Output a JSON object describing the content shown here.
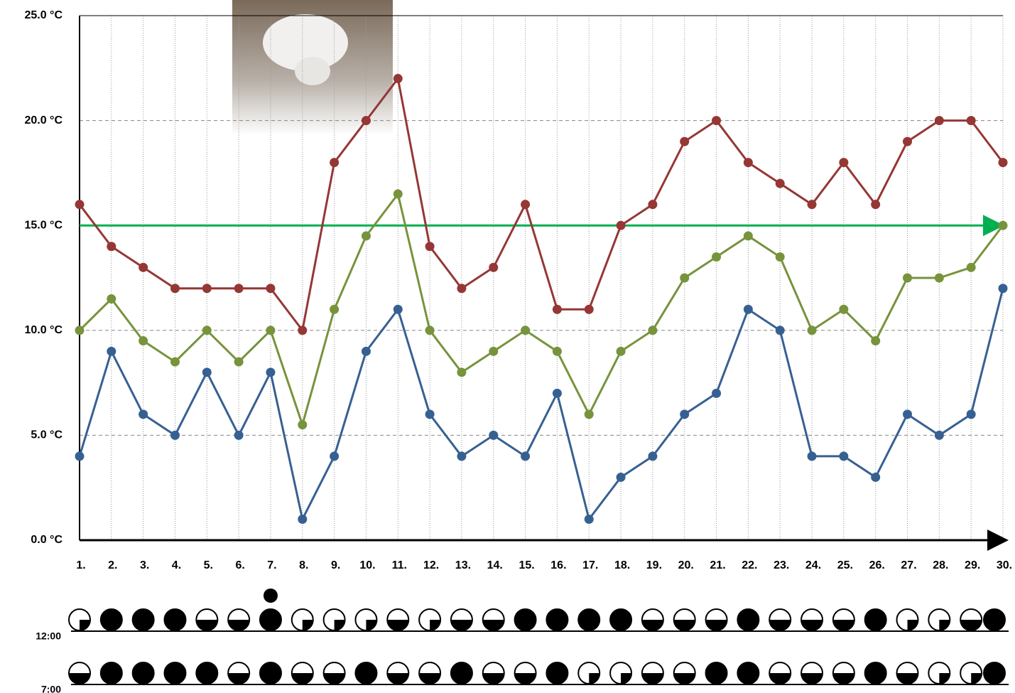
{
  "chart_data": {
    "type": "line",
    "categories": [
      "1.",
      "2.",
      "3.",
      "4.",
      "5.",
      "6.",
      "7.",
      "8.",
      "9.",
      "10.",
      "11.",
      "12.",
      "13.",
      "14.",
      "15.",
      "16.",
      "17.",
      "18.",
      "19.",
      "20.",
      "21.",
      "22.",
      "23.",
      "24.",
      "25.",
      "26.",
      "27.",
      "28.",
      "29.",
      "30."
    ],
    "series": [
      {
        "color": "#953735",
        "values": [
          16,
          14,
          13,
          12,
          12,
          12,
          12,
          10,
          18,
          20,
          22,
          14,
          12,
          13,
          16,
          11,
          11,
          15,
          16,
          19,
          20,
          18,
          17,
          16,
          18,
          16,
          19,
          20,
          20,
          18
        ]
      },
      {
        "color": "#77933c",
        "values": [
          10,
          11.5,
          9.5,
          8.5,
          10,
          8.5,
          10,
          5.5,
          11,
          14.5,
          16.5,
          10,
          8,
          9,
          10,
          9,
          6,
          9,
          10,
          12.5,
          13.5,
          14.5,
          13.5,
          10,
          11,
          9.5,
          12.5,
          12.5,
          13,
          15
        ]
      },
      {
        "color": "#376092",
        "values": [
          4,
          9,
          6,
          5,
          8,
          5,
          8,
          1,
          4,
          9,
          11,
          6,
          4,
          5,
          4,
          7,
          1,
          3,
          4,
          6,
          7,
          11,
          10,
          4,
          4,
          3,
          6,
          5,
          6,
          12
        ]
      }
    ],
    "reference": {
      "value": 15,
      "color": "#00b050"
    },
    "ylim": [
      0,
      25
    ],
    "yticks": [
      {
        "value": 0,
        "label": "0.0 °C"
      },
      {
        "value": 5,
        "label": "5.0 °C"
      },
      {
        "value": 10,
        "label": "10.0 °C"
      },
      {
        "value": 15,
        "label": "15.0 °C"
      },
      {
        "value": 20,
        "label": "20.0 °C"
      },
      {
        "value": 25,
        "label": "25.0 °C"
      }
    ],
    "grid": true,
    "cloud_cover": [
      {
        "name": "12:00",
        "values": [
          0.25,
          1,
          1,
          1,
          0.5,
          0.5,
          1,
          0.25,
          0.25,
          0.25,
          0.5,
          0.25,
          0.5,
          0.5,
          1,
          1,
          1,
          1,
          0.5,
          0.5,
          0.5,
          1,
          0.5,
          0.5,
          0.5,
          1,
          0.25,
          0.25,
          0.5,
          1
        ]
      },
      {
        "name": "7:00",
        "values": [
          0.5,
          1,
          1,
          1,
          1,
          0.5,
          1,
          0.5,
          0.5,
          1,
          0.5,
          0.5,
          1,
          0.5,
          0.5,
          1,
          0.25,
          0.25,
          0.5,
          0.5,
          1,
          1,
          0.5,
          0.5,
          0.5,
          1,
          0.5,
          0.25,
          0.25,
          1
        ]
      }
    ]
  }
}
